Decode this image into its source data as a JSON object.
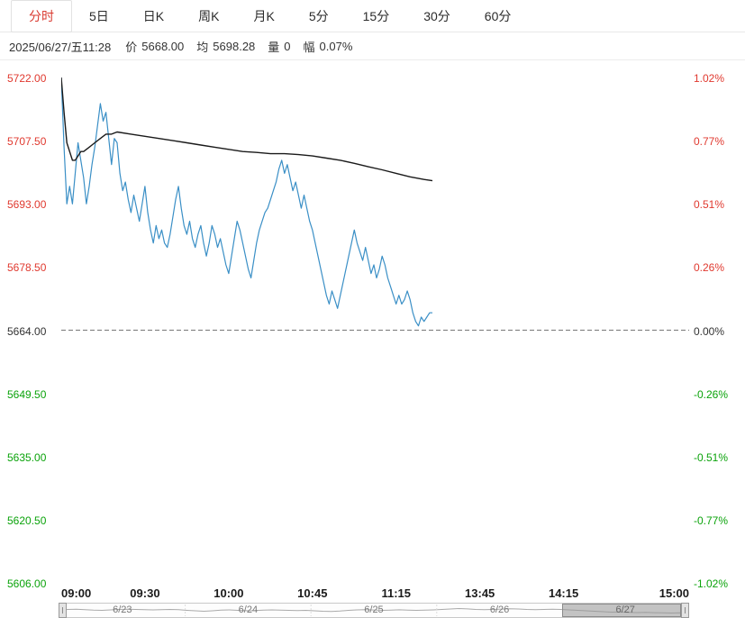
{
  "colors": {
    "up": "#e0392f",
    "down": "#0ba30b",
    "flat": "#333333",
    "price_line": "#3a8fc6",
    "avg_line": "#1a1a1a",
    "active_tab": "#d93a30"
  },
  "tabs": {
    "items": [
      {
        "label": "分时"
      },
      {
        "label": "5日"
      },
      {
        "label": "日K"
      },
      {
        "label": "周K"
      },
      {
        "label": "月K"
      },
      {
        "label": "5分"
      },
      {
        "label": "15分"
      },
      {
        "label": "30分"
      },
      {
        "label": "60分"
      }
    ]
  },
  "info": {
    "datetime": "2025/06/27/五11:28",
    "price_label": "价",
    "price": "5668.00",
    "avg_label": "均",
    "avg": "5698.28",
    "vol_label": "量",
    "vol": "0",
    "range_label": "幅",
    "range": "0.07%"
  },
  "axes": {
    "left": [
      {
        "label": "5722.00",
        "color": "#e0392f"
      },
      {
        "label": "5707.50",
        "color": "#e0392f"
      },
      {
        "label": "5693.00",
        "color": "#e0392f"
      },
      {
        "label": "5678.50",
        "color": "#e0392f"
      },
      {
        "label": "5664.00",
        "color": "#333333"
      },
      {
        "label": "5649.50",
        "color": "#0ba30b"
      },
      {
        "label": "5635.00",
        "color": "#0ba30b"
      },
      {
        "label": "5620.50",
        "color": "#0ba30b"
      },
      {
        "label": "5606.00",
        "color": "#0ba30b"
      }
    ],
    "right": [
      {
        "label": "1.02%",
        "color": "#e0392f"
      },
      {
        "label": "0.77%",
        "color": "#e0392f"
      },
      {
        "label": "0.51%",
        "color": "#e0392f"
      },
      {
        "label": "0.26%",
        "color": "#e0392f"
      },
      {
        "label": "0.00%",
        "color": "#333333"
      },
      {
        "label": "-0.26%",
        "color": "#0ba30b"
      },
      {
        "label": "-0.51%",
        "color": "#0ba30b"
      },
      {
        "label": "-0.77%",
        "color": "#0ba30b"
      },
      {
        "label": "-1.02%",
        "color": "#0ba30b"
      }
    ]
  },
  "navigator": {
    "dates": [
      "6/23",
      "6/24",
      "6/25",
      "6/26",
      "6/27"
    ],
    "selected": "6/27"
  },
  "chart_data": {
    "type": "line",
    "title": "分时 (intraday) price chart 2025/06/27",
    "prev_close": 5664.0,
    "prev_close_color": "#777777",
    "x_total_minutes": 225,
    "x_ticks": [
      {
        "label": "09:00",
        "minute": 0
      },
      {
        "label": "09:30",
        "minute": 30
      },
      {
        "label": "10:00",
        "minute": 60
      },
      {
        "label": "10:45",
        "minute": 90
      },
      {
        "label": "11:15",
        "minute": 120
      },
      {
        "label": "13:45",
        "minute": 150
      },
      {
        "label": "14:15",
        "minute": 180
      },
      {
        "label": "15:00",
        "minute": 225
      }
    ],
    "y_axis": {
      "min": 5606,
      "max": 5722,
      "ticks": [
        5722.0,
        5707.5,
        5693.0,
        5678.5,
        5664.0,
        5649.5,
        5635.0,
        5620.5,
        5606.0
      ]
    },
    "pct_ticks": [
      1.02,
      0.77,
      0.51,
      0.26,
      0.0,
      -0.26,
      -0.51,
      -0.77,
      -1.02
    ],
    "series": [
      {
        "name": "price",
        "color": "#3a8fc6",
        "points": [
          [
            0,
            5722
          ],
          [
            1,
            5706
          ],
          [
            2,
            5693
          ],
          [
            3,
            5697
          ],
          [
            4,
            5693
          ],
          [
            5,
            5700
          ],
          [
            6,
            5707
          ],
          [
            7,
            5703
          ],
          [
            8,
            5699
          ],
          [
            9,
            5693
          ],
          [
            10,
            5697
          ],
          [
            11,
            5702
          ],
          [
            12,
            5706
          ],
          [
            13,
            5711
          ],
          [
            14,
            5716
          ],
          [
            15,
            5712
          ],
          [
            16,
            5714
          ],
          [
            17,
            5708
          ],
          [
            18,
            5702
          ],
          [
            19,
            5708
          ],
          [
            20,
            5707
          ],
          [
            21,
            5700
          ],
          [
            22,
            5696
          ],
          [
            23,
            5698
          ],
          [
            24,
            5694
          ],
          [
            25,
            5691
          ],
          [
            26,
            5695
          ],
          [
            27,
            5692
          ],
          [
            28,
            5689
          ],
          [
            29,
            5693
          ],
          [
            30,
            5697
          ],
          [
            31,
            5691
          ],
          [
            32,
            5687
          ],
          [
            33,
            5684
          ],
          [
            34,
            5688
          ],
          [
            35,
            5685
          ],
          [
            36,
            5687
          ],
          [
            37,
            5684
          ],
          [
            38,
            5683
          ],
          [
            39,
            5686
          ],
          [
            40,
            5690
          ],
          [
            41,
            5694
          ],
          [
            42,
            5697
          ],
          [
            43,
            5692
          ],
          [
            44,
            5688
          ],
          [
            45,
            5686
          ],
          [
            46,
            5689
          ],
          [
            47,
            5685
          ],
          [
            48,
            5683
          ],
          [
            49,
            5686
          ],
          [
            50,
            5688
          ],
          [
            51,
            5684
          ],
          [
            52,
            5681
          ],
          [
            53,
            5684
          ],
          [
            54,
            5688
          ],
          [
            55,
            5686
          ],
          [
            56,
            5683
          ],
          [
            57,
            5685
          ],
          [
            58,
            5682
          ],
          [
            59,
            5679
          ],
          [
            60,
            5677
          ],
          [
            61,
            5681
          ],
          [
            62,
            5685
          ],
          [
            63,
            5689
          ],
          [
            64,
            5687
          ],
          [
            65,
            5684
          ],
          [
            66,
            5681
          ],
          [
            67,
            5678
          ],
          [
            68,
            5676
          ],
          [
            69,
            5680
          ],
          [
            70,
            5684
          ],
          [
            71,
            5687
          ],
          [
            72,
            5689
          ],
          [
            73,
            5691
          ],
          [
            74,
            5692
          ],
          [
            75,
            5694
          ],
          [
            76,
            5696
          ],
          [
            77,
            5698
          ],
          [
            78,
            5701
          ],
          [
            79,
            5703
          ],
          [
            80,
            5700
          ],
          [
            81,
            5702
          ],
          [
            82,
            5699
          ],
          [
            83,
            5696
          ],
          [
            84,
            5698
          ],
          [
            85,
            5695
          ],
          [
            86,
            5692
          ],
          [
            87,
            5695
          ],
          [
            88,
            5692
          ],
          [
            89,
            5689
          ],
          [
            90,
            5687
          ],
          [
            91,
            5684
          ],
          [
            92,
            5681
          ],
          [
            93,
            5678
          ],
          [
            94,
            5675
          ],
          [
            95,
            5672
          ],
          [
            96,
            5670
          ],
          [
            97,
            5673
          ],
          [
            98,
            5671
          ],
          [
            99,
            5669
          ],
          [
            100,
            5672
          ],
          [
            101,
            5675
          ],
          [
            102,
            5678
          ],
          [
            103,
            5681
          ],
          [
            104,
            5684
          ],
          [
            105,
            5687
          ],
          [
            106,
            5684
          ],
          [
            107,
            5682
          ],
          [
            108,
            5680
          ],
          [
            109,
            5683
          ],
          [
            110,
            5680
          ],
          [
            111,
            5677
          ],
          [
            112,
            5679
          ],
          [
            113,
            5676
          ],
          [
            114,
            5678
          ],
          [
            115,
            5681
          ],
          [
            116,
            5679
          ],
          [
            117,
            5676
          ],
          [
            118,
            5674
          ],
          [
            119,
            5672
          ],
          [
            120,
            5670
          ],
          [
            121,
            5672
          ],
          [
            122,
            5670
          ],
          [
            123,
            5671
          ],
          [
            124,
            5673
          ],
          [
            125,
            5671
          ],
          [
            126,
            5668
          ],
          [
            127,
            5666
          ],
          [
            128,
            5665
          ],
          [
            129,
            5667
          ],
          [
            130,
            5666
          ],
          [
            131,
            5667
          ],
          [
            132,
            5668
          ],
          [
            133,
            5668
          ]
        ]
      },
      {
        "name": "average",
        "color": "#1a1a1a",
        "points": [
          [
            0,
            5722
          ],
          [
            1,
            5714
          ],
          [
            2,
            5707
          ],
          [
            3,
            5705
          ],
          [
            4,
            5703
          ],
          [
            5,
            5703
          ],
          [
            6,
            5704
          ],
          [
            7,
            5705
          ],
          [
            8,
            5705
          ],
          [
            10,
            5706
          ],
          [
            12,
            5707
          ],
          [
            14,
            5708
          ],
          [
            16,
            5709
          ],
          [
            18,
            5709
          ],
          [
            20,
            5709.5
          ],
          [
            25,
            5709
          ],
          [
            30,
            5708.5
          ],
          [
            35,
            5708
          ],
          [
            40,
            5707.5
          ],
          [
            45,
            5707
          ],
          [
            50,
            5706.5
          ],
          [
            55,
            5706
          ],
          [
            60,
            5705.5
          ],
          [
            65,
            5705
          ],
          [
            70,
            5704.8
          ],
          [
            75,
            5704.5
          ],
          [
            80,
            5704.5
          ],
          [
            85,
            5704.3
          ],
          [
            90,
            5704
          ],
          [
            95,
            5703.5
          ],
          [
            100,
            5703
          ],
          [
            105,
            5702.3
          ],
          [
            110,
            5701.5
          ],
          [
            115,
            5700.8
          ],
          [
            120,
            5700
          ],
          [
            125,
            5699.2
          ],
          [
            130,
            5698.6
          ],
          [
            133,
            5698.3
          ]
        ]
      }
    ],
    "navigator_series": {
      "color": "#aaaaaa",
      "values": [
        0.55,
        0.6,
        0.62,
        0.58,
        0.52,
        0.5,
        0.55,
        0.6,
        0.63,
        0.6,
        0.57,
        0.55,
        0.58,
        0.6,
        0.57,
        0.5,
        0.45,
        0.4,
        0.45,
        0.52,
        0.55,
        0.5,
        0.46,
        0.48,
        0.53,
        0.55,
        0.52,
        0.5,
        0.48,
        0.5,
        0.45,
        0.4,
        0.38,
        0.42,
        0.5,
        0.55,
        0.58,
        0.54,
        0.5,
        0.52,
        0.56,
        0.53,
        0.5,
        0.52,
        0.55,
        0.6,
        0.65,
        0.7,
        0.66,
        0.6,
        0.57,
        0.6,
        0.64,
        0.68,
        0.65,
        0.6,
        0.58,
        0.6,
        0.63,
        0.6,
        0.55,
        0.5,
        0.45,
        0.4,
        0.35,
        0.3,
        0.32,
        0.28,
        0.25,
        0.27,
        0.24,
        0.22,
        0.2,
        0.22,
        0.21
      ]
    }
  }
}
